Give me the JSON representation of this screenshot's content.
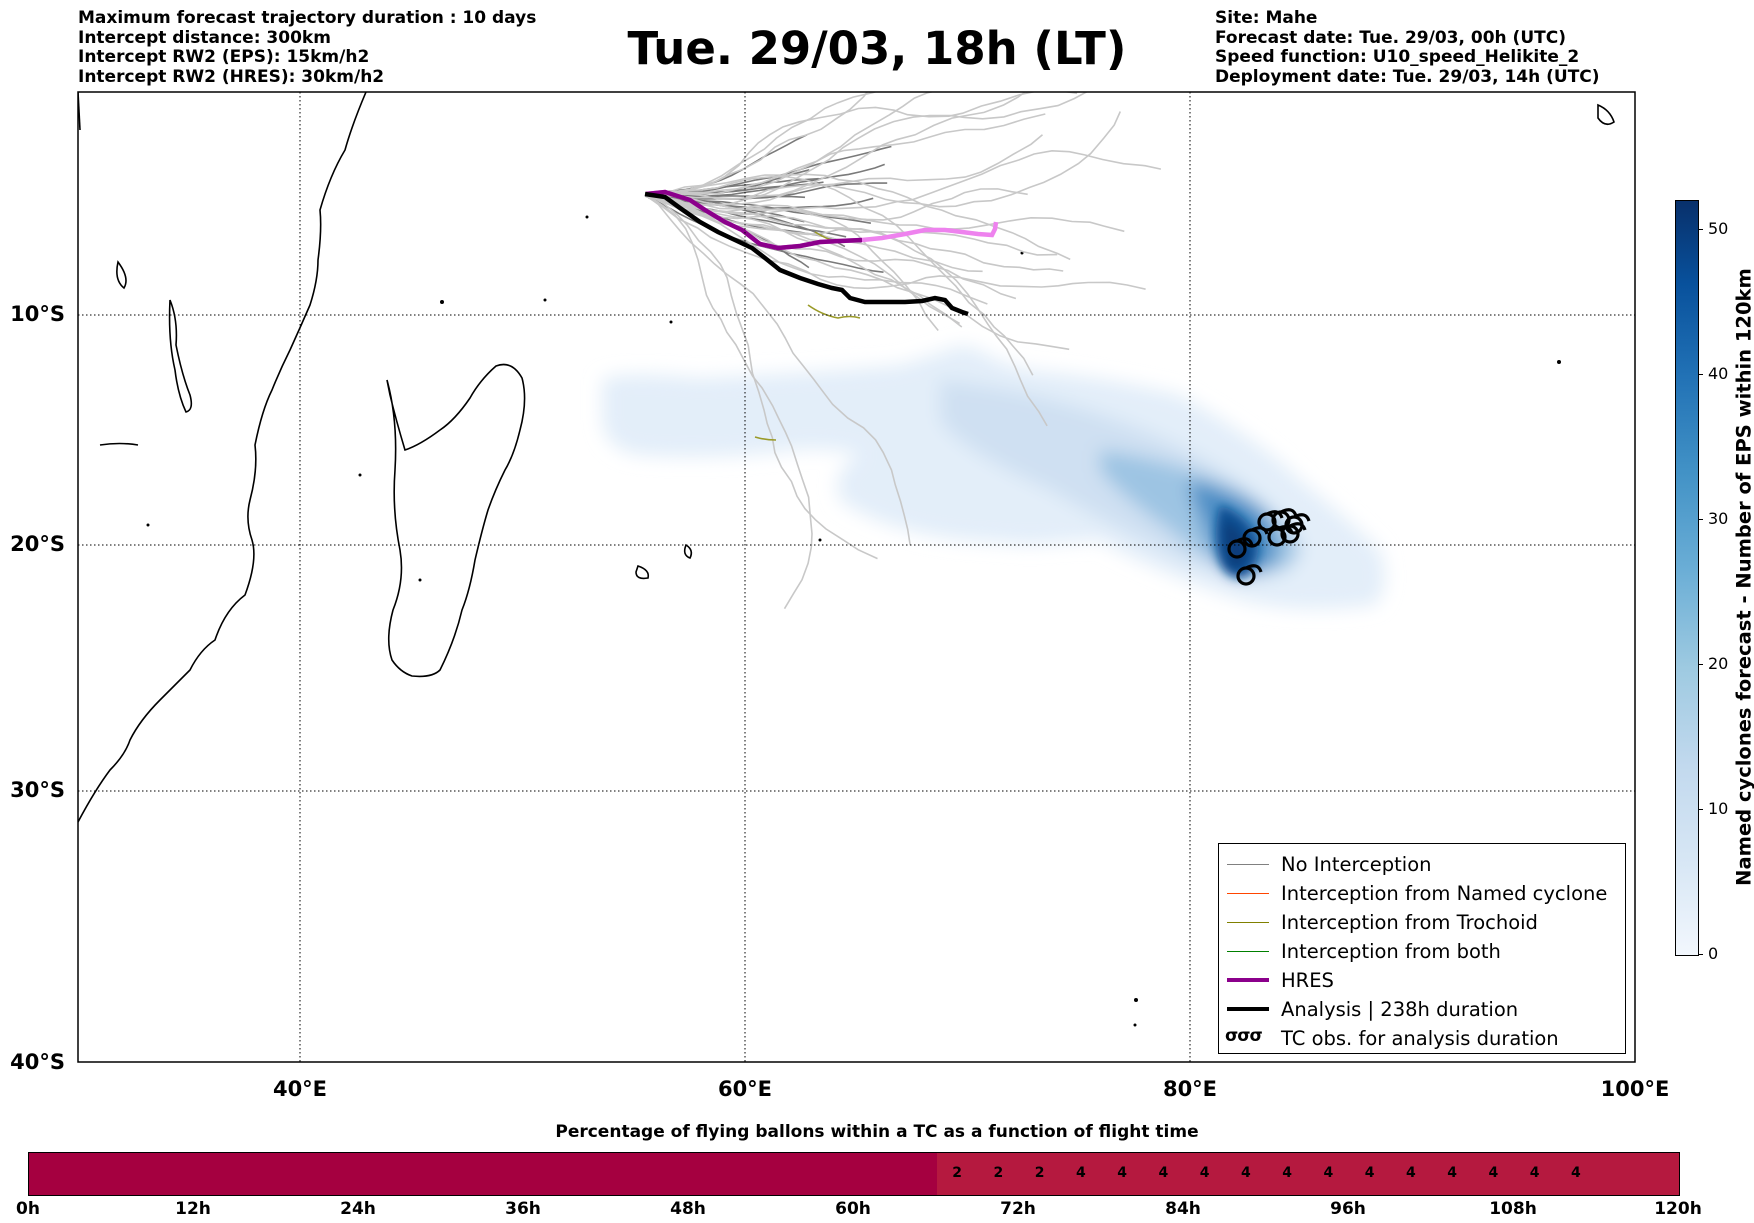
{
  "header_left": [
    "Maximum forecast trajectory duration : 10 days",
    "Intercept distance: 300km",
    "Intercept RW2 (EPS):  15km/h2",
    "Intercept RW2 (HRES): 30km/h2"
  ],
  "header_right": [
    "Site: Mahe",
    "Forecast date: Tue. 29/03, 00h (UTC)",
    "Speed function: U10_speed_Helikite_2",
    "Deployment date: Tue. 29/03, 14h (UTC)"
  ],
  "title": "Tue. 29/03, 18h (LT)",
  "map": {
    "lat_labels": [
      "10°S",
      "20°S",
      "30°S",
      "40°S"
    ],
    "lon_labels": [
      "40°E",
      "60°E",
      "80°E",
      "100°E"
    ],
    "grid": "dotted",
    "extent": {
      "lon": [
        30,
        100
      ],
      "lat": [
        -40.8,
        -1.3
      ]
    }
  },
  "legend": {
    "no_interception": "No Interception",
    "named_cyclone": "Interception from Named cyclone",
    "trochoid": "Interception from Trochoid",
    "both": "Interception from both",
    "hres": "HRES",
    "analysis": "Analysis | 238h duration",
    "tc_obs": "TC obs. for analysis duration",
    "tc_glyph": "σσσ",
    "colors": {
      "no_interception": "#808080",
      "named_cyclone": "#ff4500",
      "trochoid": "#808000",
      "both": "#008000",
      "hres": "#8b008b",
      "analysis": "#000000"
    }
  },
  "colorbar": {
    "title": "Named cyclones forecast - Number of EPS within 120km",
    "ticks": [
      "0",
      "10",
      "20",
      "30",
      "40",
      "50"
    ],
    "range": [
      0,
      52
    ]
  },
  "pct_chart": {
    "title": "Percentage of flying ballons within a TC as a function of flight time",
    "time_labels": [
      "0h",
      "12h",
      "24h",
      "36h",
      "48h",
      "60h",
      "72h",
      "84h",
      "96h",
      "108h",
      "120h"
    ],
    "zero_color": "#a50040",
    "nonzero_color": "#b5193f",
    "segments": [
      {
        "start_h": 0,
        "end_h": 66,
        "value": null
      },
      {
        "start_h": 66,
        "end_h": 75,
        "value": "2"
      },
      {
        "start_h": 75,
        "end_h": 120,
        "value": "4"
      }
    ],
    "values": [
      "2",
      "2",
      "2",
      "4",
      "4",
      "4",
      "4",
      "4",
      "4",
      "4",
      "4",
      "4",
      "4",
      "4",
      "4",
      "4"
    ]
  }
}
